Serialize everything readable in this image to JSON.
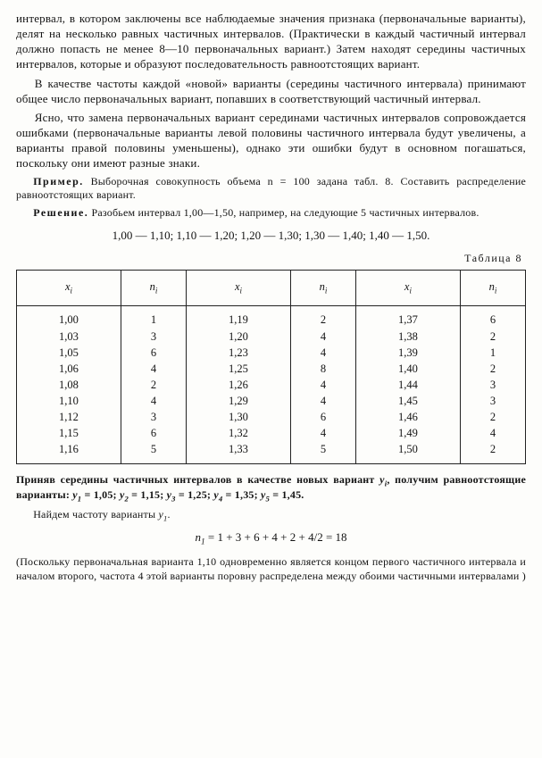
{
  "para1": "интервал, в котором заключены все наблюдаемые значения признака (первоначальные варианты), делят на несколько равных частичных интервалов. (Практически в каждый частичный интервал должно попасть не менее 8—10 первоначальных вариант.) Затем находят середины частичных интервалов, которые и образуют последовательность равноотстоящих вариант.",
  "para2": "В качестве частоты каждой «новой» варианты (середины частичного интервала) принимают общее число первоначальных вариант, попавших в соответствующий частичный интервал.",
  "para3": "Ясно, что замена первоначальных вариант серединами частичных интервалов сопровождается ошибками (первоначальные варианты левой половины частичного интервала будут увеличены, а варианты правой половины уменьшены), однако эти ошибки будут в основном погашаться, поскольку они имеют разные знаки.",
  "example_lead": "Пример.",
  "example_rest": " Выборочная совокупность объема n = 100 задана табл. 8. Составить распределение равноотстоящих вариант.",
  "solution_lead": "Решение.",
  "solution_rest": " Разобьем интервал 1,00—1,50, например, на следующие 5 частичных интервалов.",
  "intervals_line": "1,00 — 1,10;  1,10 — 1,20;  1,20 — 1,30;  1,30 — 1,40;  1,40 — 1,50.",
  "table_caption": "Таблица 8",
  "headers": [
    "x",
    "n",
    "x",
    "n",
    "x",
    "n"
  ],
  "col_x1": "1,00\n1,03\n1,05\n1,06\n1,08\n1,10\n1,12\n1,15\n1,16",
  "col_n1": "1\n3\n6\n4\n2\n4\n3\n6\n5",
  "col_x2": "1,19\n1,20\n1,23\n1,25\n1,26\n1,29\n1,30\n1,32\n1,33",
  "col_n2": "2\n4\n4\n8\n4\n4\n6\n4\n5",
  "col_x3": "1,37\n1,38\n1,39\n1,40\n1,44\n1,45\n1,46\n1,49\n1,50",
  "col_n3": "6\n2\n1\n2\n3\n3\n2\n4\n2",
  "after_table_intro": "Приняв середины частичных интервалов в качестве новых вариант ",
  "after_table_text": "получим равноотстоящие варианты: ",
  "y1l": "y",
  "y1v": " = 1,05;  ",
  "y2l": "y",
  "y2v": " = 1,15;  ",
  "y3l": "y",
  "y3v": " = 1,25; ",
  "y4l": "y",
  "y4v": " = 1,35;  ",
  "y5l": "y",
  "y5v": " = 1,45.",
  "find_freq_text": "Найдем частоту варианты ",
  "formula_text": " = 1 + 3 + 6 + 4 + 2 + 4/2 = 18",
  "footnote": "(Поскольку первоначальная варианта 1,10 одновременно является концом первого частичного интервала и началом второго, частота 4 этой варианты поровну распределена между обоими частичными интервалами )",
  "sub_i": "i",
  "sub_1": "1",
  "sub_2": "2",
  "sub_3": "3",
  "sub_4": "4",
  "sub_5": "5",
  "n_char": "n",
  "y_char": "y",
  "comma_space": ", "
}
